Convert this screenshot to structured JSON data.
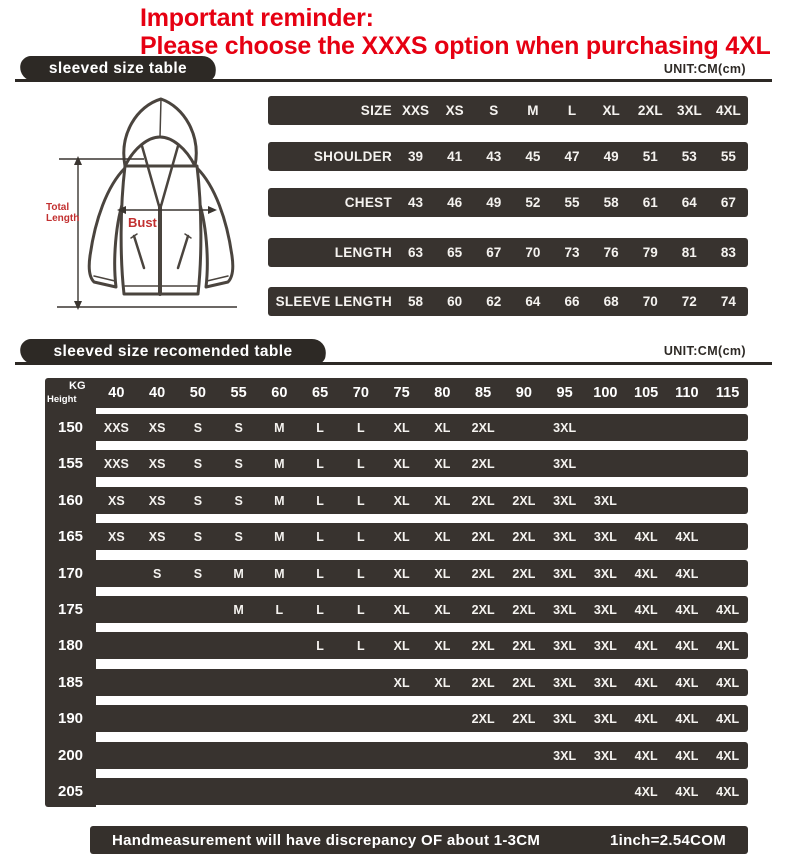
{
  "reminder": {
    "line1": "Important reminder:",
    "line2": "Please choose the XXXS option when purchasing 4XL"
  },
  "section1": {
    "title": "sleeved size table",
    "unit": "UNIT:CM(cm)"
  },
  "section2": {
    "title": "sleeved size recomended table",
    "unit": "UNIT:CM(cm)"
  },
  "diagram": {
    "total_length": [
      "Total",
      "Length"
    ],
    "bust": "Bust"
  },
  "size_table": {
    "rows": [
      {
        "label": "SIZE",
        "values": [
          "XXS",
          "XS",
          "S",
          "M",
          "L",
          "XL",
          "2XL",
          "3XL",
          "4XL"
        ]
      },
      {
        "label": "SHOULDER",
        "values": [
          "39",
          "41",
          "43",
          "45",
          "47",
          "49",
          "51",
          "53",
          "55"
        ]
      },
      {
        "label": "CHEST",
        "values": [
          "43",
          "46",
          "49",
          "52",
          "55",
          "58",
          "61",
          "64",
          "67"
        ]
      },
      {
        "label": "LENGTH",
        "values": [
          "63",
          "65",
          "67",
          "70",
          "73",
          "76",
          "79",
          "81",
          "83"
        ]
      },
      {
        "label": "SLEEVE LENGTH",
        "values": [
          "58",
          "60",
          "62",
          "64",
          "66",
          "68",
          "70",
          "72",
          "74"
        ]
      }
    ]
  },
  "recommend_table": {
    "corner_top": "KG",
    "corner_bottom": "Height",
    "weights": [
      "40",
      "40",
      "50",
      "55",
      "60",
      "65",
      "70",
      "75",
      "80",
      "85",
      "90",
      "95",
      "100",
      "105",
      "110",
      "115"
    ],
    "rows": [
      {
        "height": "150",
        "sizes": [
          "XXS",
          "XS",
          "S",
          "S",
          "M",
          "L",
          "L",
          "XL",
          "XL",
          "2XL",
          "",
          "3XL",
          "",
          "",
          "",
          ""
        ]
      },
      {
        "height": "155",
        "sizes": [
          "XXS",
          "XS",
          "S",
          "S",
          "M",
          "L",
          "L",
          "XL",
          "XL",
          "2XL",
          "",
          "3XL",
          "",
          "",
          "",
          ""
        ]
      },
      {
        "height": "160",
        "sizes": [
          "XS",
          "XS",
          "S",
          "S",
          "M",
          "L",
          "L",
          "XL",
          "XL",
          "2XL",
          "2XL",
          "3XL",
          "3XL",
          "",
          "",
          ""
        ]
      },
      {
        "height": "165",
        "sizes": [
          "XS",
          "XS",
          "S",
          "S",
          "M",
          "L",
          "L",
          "XL",
          "XL",
          "2XL",
          "2XL",
          "3XL",
          "3XL",
          "4XL",
          "4XL",
          ""
        ]
      },
      {
        "height": "170",
        "sizes": [
          "",
          "S",
          "S",
          "M",
          "M",
          "L",
          "L",
          "XL",
          "XL",
          "2XL",
          "2XL",
          "3XL",
          "3XL",
          "4XL",
          "4XL",
          ""
        ]
      },
      {
        "height": "175",
        "sizes": [
          "",
          "",
          "",
          "M",
          "L",
          "L",
          "L",
          "XL",
          "XL",
          "2XL",
          "2XL",
          "3XL",
          "3XL",
          "4XL",
          "4XL",
          "4XL"
        ]
      },
      {
        "height": "180",
        "sizes": [
          "",
          "",
          "",
          "",
          "",
          "L",
          "L",
          "XL",
          "XL",
          "2XL",
          "2XL",
          "3XL",
          "3XL",
          "4XL",
          "4XL",
          "4XL"
        ]
      },
      {
        "height": "185",
        "sizes": [
          "",
          "",
          "",
          "",
          "",
          "",
          "",
          "XL",
          "XL",
          "2XL",
          "2XL",
          "3XL",
          "3XL",
          "4XL",
          "4XL",
          "4XL"
        ]
      },
      {
        "height": "190",
        "sizes": [
          "",
          "",
          "",
          "",
          "",
          "",
          "",
          "",
          "",
          "2XL",
          "2XL",
          "3XL",
          "3XL",
          "4XL",
          "4XL",
          "4XL"
        ]
      },
      {
        "height": "200",
        "sizes": [
          "",
          "",
          "",
          "",
          "",
          "",
          "",
          "",
          "",
          "",
          "",
          "3XL",
          "3XL",
          "4XL",
          "4XL",
          "4XL"
        ]
      },
      {
        "height": "205",
        "sizes": [
          "",
          "",
          "",
          "",
          "",
          "",
          "",
          "",
          "",
          "",
          "",
          "",
          "",
          "4XL",
          "4XL",
          "4XL"
        ]
      }
    ]
  },
  "footer": {
    "left": "Handmeasurement will have discrepancy OF about 1-3CM",
    "right": "1inch=2.54COM"
  },
  "colors": {
    "bar": "#38332f",
    "tab": "#2d2925",
    "accent_red": "#e60012"
  }
}
